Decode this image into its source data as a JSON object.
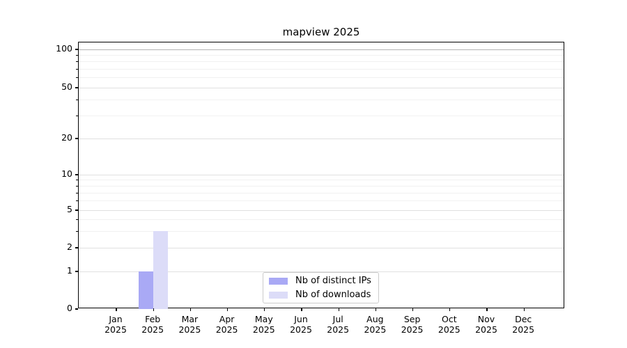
{
  "chart_data": {
    "type": "bar",
    "title": "mapview 2025",
    "categories": [
      "Jan 2025",
      "Feb 2025",
      "Mar 2025",
      "Apr 2025",
      "May 2025",
      "Jun 2025",
      "Jul 2025",
      "Aug 2025",
      "Sep 2025",
      "Oct 2025",
      "Nov 2025",
      "Dec 2025"
    ],
    "series": [
      {
        "name": "Nb of distinct IPs",
        "color": "#a9a9f5",
        "values": [
          0,
          1,
          0,
          0,
          0,
          0,
          0,
          0,
          0,
          0,
          0,
          0
        ]
      },
      {
        "name": "Nb of downloads",
        "color": "#dcdcf8",
        "values": [
          0,
          3,
          0,
          0,
          0,
          0,
          0,
          0,
          0,
          0,
          0,
          0
        ]
      }
    ],
    "xlabel": "",
    "ylabel": "",
    "y_axis": {
      "scale": "log-like",
      "major_ticks": [
        0,
        1,
        2,
        5,
        10,
        20,
        50,
        100
      ],
      "minor_ticks": [
        3,
        4,
        6,
        7,
        8,
        9,
        30,
        40,
        60,
        70,
        80,
        90
      ],
      "ylim": [
        0,
        100
      ]
    },
    "grid": "on",
    "legend_position": "bottom-center"
  }
}
